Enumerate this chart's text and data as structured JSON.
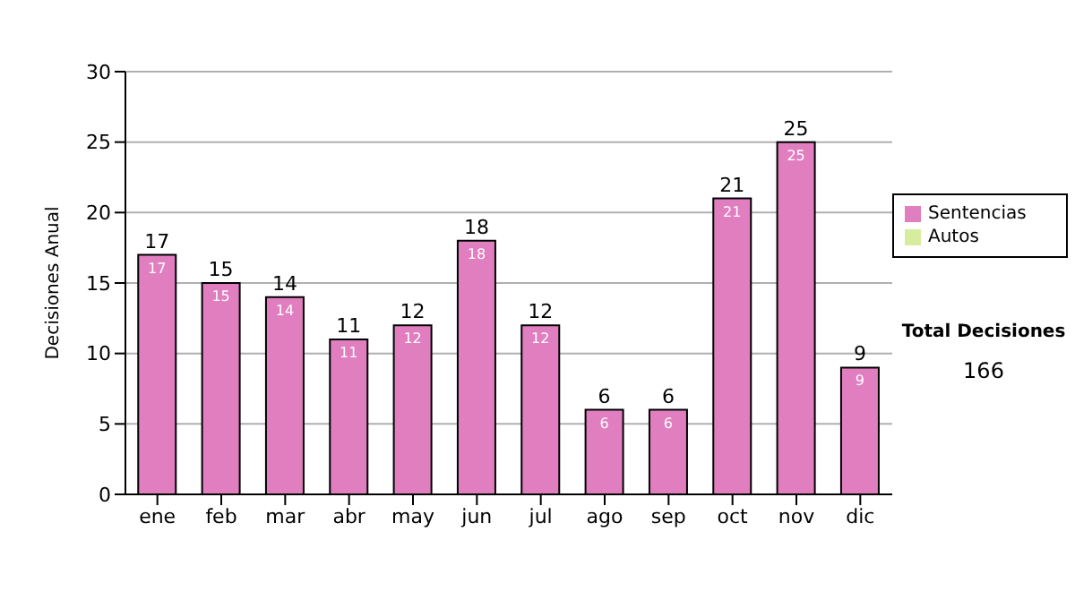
{
  "chart_data": {
    "type": "bar",
    "ylabel": "Decisiones Anual",
    "categories": [
      "ene",
      "feb",
      "mar",
      "abr",
      "may",
      "jun",
      "jul",
      "ago",
      "sep",
      "oct",
      "nov",
      "dic"
    ],
    "stacked": true,
    "series": [
      {
        "name": "Sentencias",
        "color": "#e07ec0",
        "values": [
          17,
          15,
          14,
          11,
          12,
          18,
          12,
          6,
          6,
          21,
          25,
          9
        ],
        "value_labels": [
          "17",
          "15",
          "14",
          "11",
          "12",
          "18",
          "12",
          "6",
          "6",
          "21",
          "25",
          "9"
        ]
      },
      {
        "name": "Autos",
        "color": "#d8eca0",
        "values": [
          0,
          0,
          0,
          0,
          0,
          0,
          0,
          0,
          0,
          0,
          0,
          0
        ],
        "value_labels": [
          null,
          null,
          null,
          null,
          null,
          null,
          null,
          null,
          null,
          null,
          null,
          null
        ]
      }
    ],
    "totals": [
      "17",
      "15",
      "14",
      "11",
      "12",
      "18",
      "12",
      "6",
      "6",
      "21",
      "25",
      "9"
    ],
    "ylim": [
      0,
      30
    ],
    "yticks": [
      0,
      5,
      10,
      15,
      20,
      25,
      30
    ],
    "grid": "y",
    "legend": "right",
    "annotations": [
      "Total Decisiones",
      "166"
    ]
  }
}
